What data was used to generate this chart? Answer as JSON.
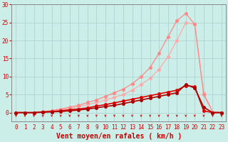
{
  "xlabel": "Vent moyen/en rafales ( km/h )",
  "xlim": [
    0,
    23
  ],
  "ylim": [
    0,
    30
  ],
  "xticks": [
    0,
    1,
    2,
    3,
    4,
    5,
    6,
    7,
    8,
    9,
    10,
    11,
    12,
    13,
    14,
    15,
    16,
    17,
    18,
    19,
    20,
    21,
    22,
    23
  ],
  "yticks": [
    0,
    5,
    10,
    15,
    20,
    25,
    30
  ],
  "bg_color": "#cceee8",
  "grid_color": "#aacccc",
  "x": [
    0,
    1,
    2,
    3,
    4,
    5,
    6,
    7,
    8,
    9,
    10,
    11,
    12,
    13,
    14,
    15,
    16,
    17,
    18,
    19,
    20,
    21,
    22,
    23
  ],
  "line_light1_color": "#ffaaaa",
  "line_light2_color": "#ff8888",
  "line_dark1_color": "#dd0000",
  "line_dark2_color": "#aa0000",
  "line_light1_y": [
    0,
    0,
    0,
    0.2,
    0.4,
    0.8,
    1.2,
    1.6,
    2.2,
    2.8,
    3.5,
    4.2,
    5.0,
    6.2,
    7.8,
    9.5,
    12.0,
    15.5,
    20.0,
    25.0,
    24.5,
    5.5,
    0.2,
    0
  ],
  "line_light2_y": [
    0,
    0,
    0,
    0.3,
    0.6,
    1.0,
    1.5,
    2.0,
    2.8,
    3.5,
    4.5,
    5.5,
    6.5,
    8.0,
    10.0,
    12.5,
    16.5,
    21.0,
    25.5,
    27.5,
    24.5,
    5.0,
    0.2,
    0
  ],
  "line_dark1_y": [
    0,
    0,
    0,
    0.2,
    0.3,
    0.5,
    0.8,
    1.0,
    1.3,
    1.8,
    2.2,
    2.7,
    3.2,
    3.7,
    4.2,
    4.7,
    5.2,
    5.7,
    6.2,
    7.5,
    7.2,
    0.5,
    0,
    0
  ],
  "line_dark2_y": [
    0,
    0,
    0,
    0.1,
    0.2,
    0.3,
    0.5,
    0.7,
    1.0,
    1.3,
    1.7,
    2.0,
    2.5,
    3.0,
    3.5,
    4.0,
    4.5,
    5.0,
    5.5,
    7.8,
    6.8,
    1.5,
    0,
    0
  ],
  "marker_size": 2.5,
  "line_width": 0.9,
  "xlabel_fontsize": 7,
  "tick_fontsize": 5.5,
  "tick_color": "#cc0000",
  "xlabel_color": "#cc0000",
  "arrow_color": "#cc0000"
}
